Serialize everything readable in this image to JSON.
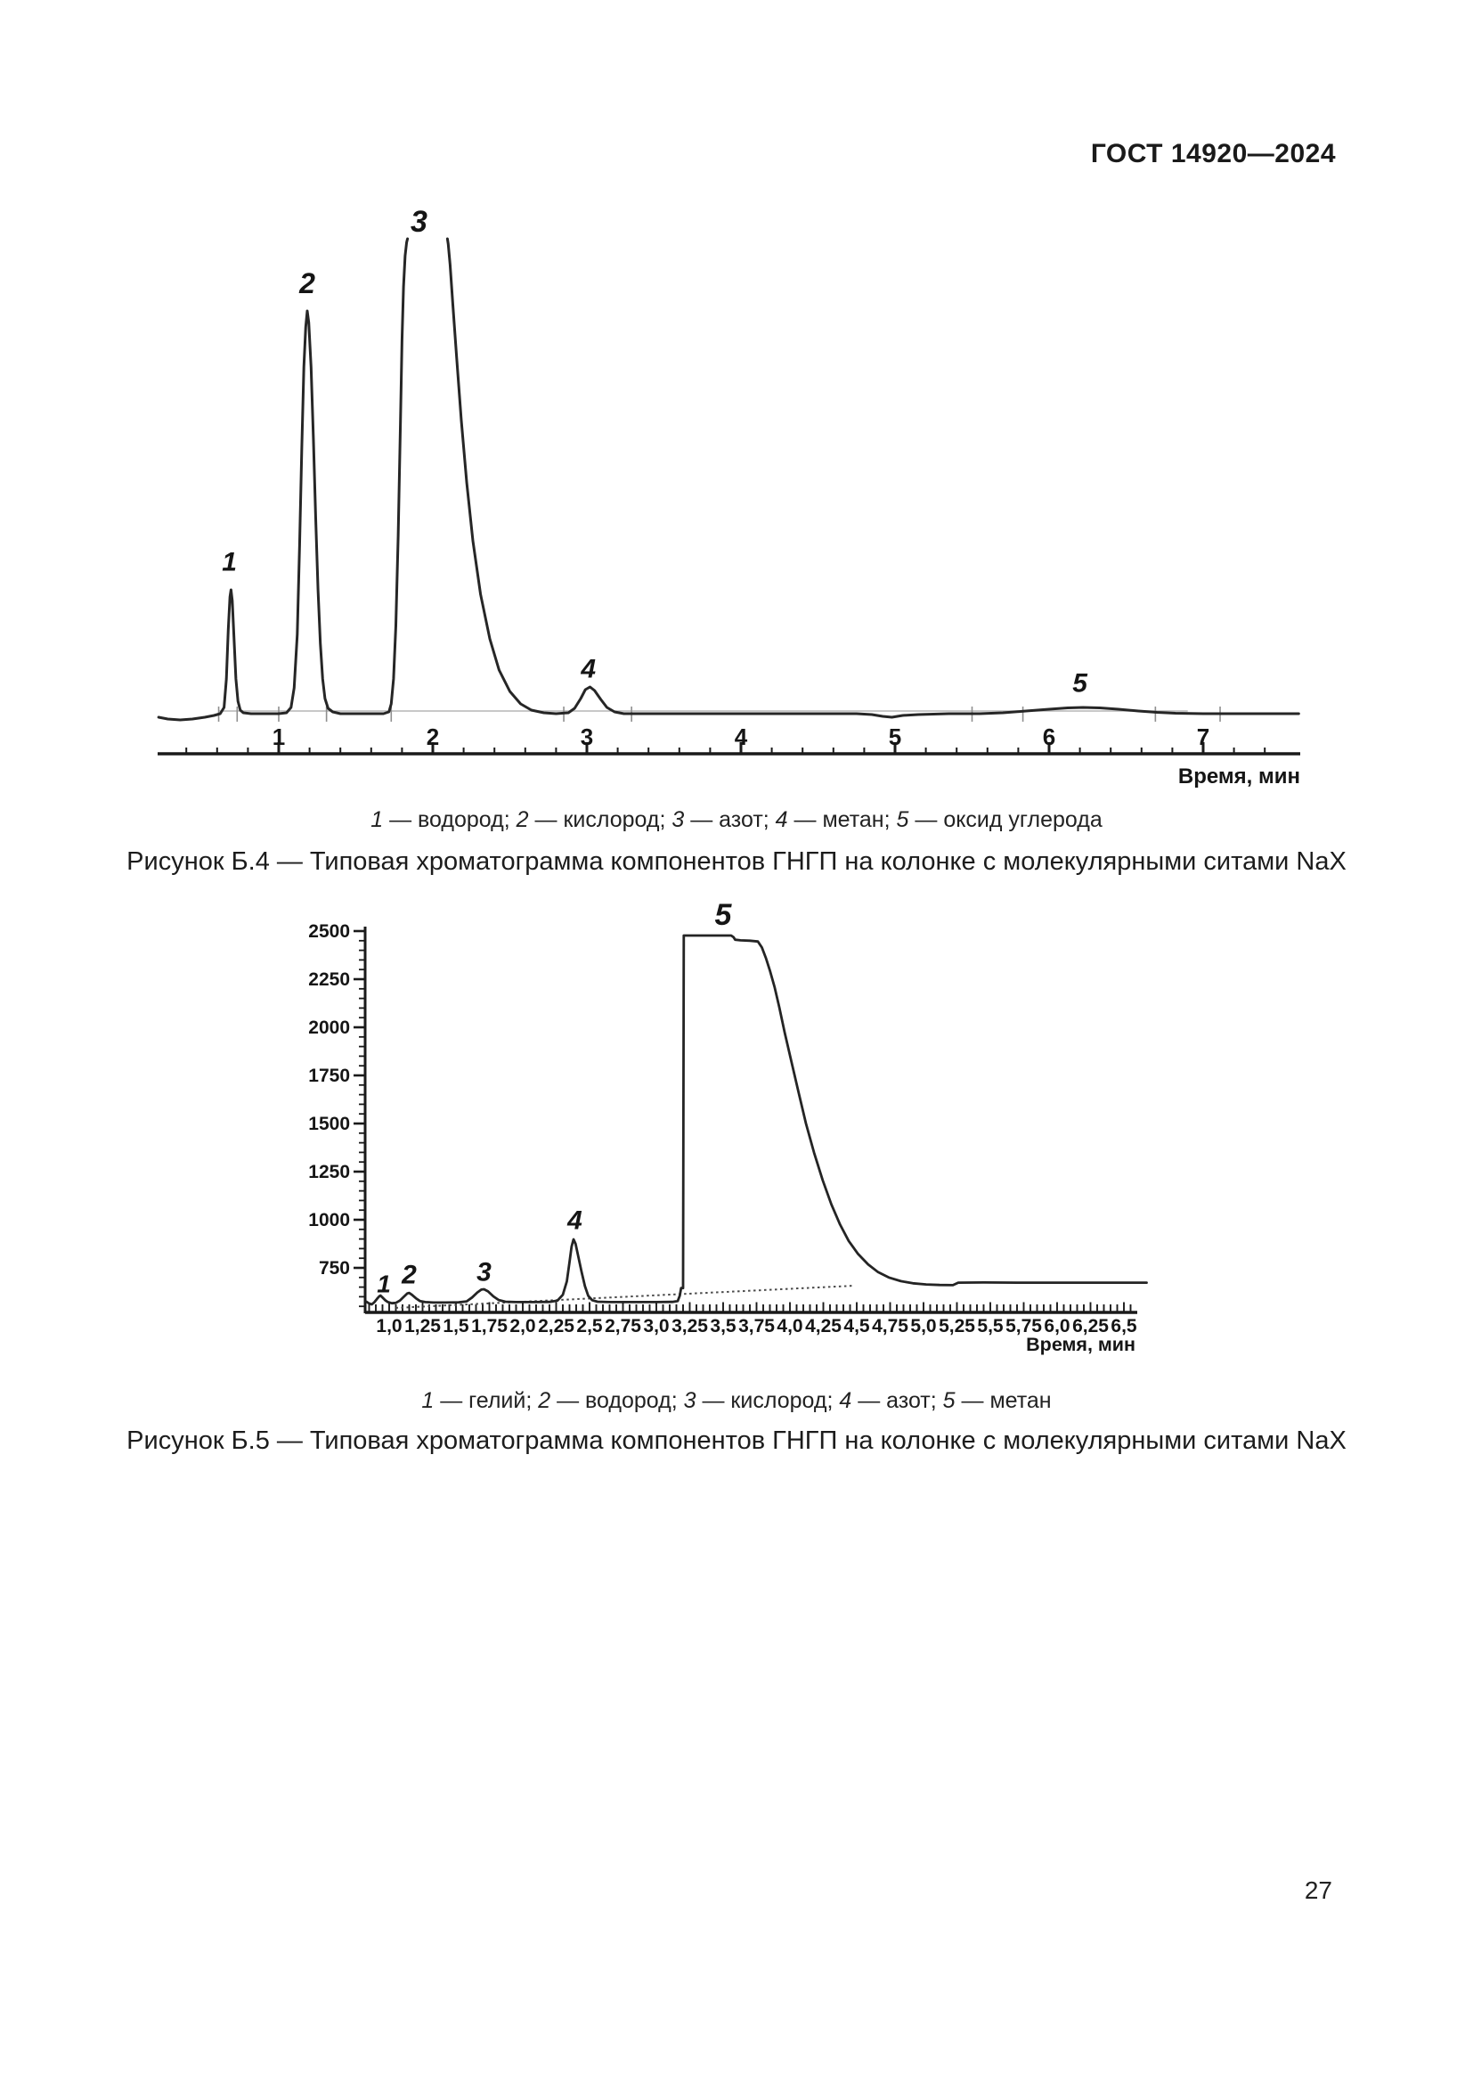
{
  "page": {
    "header_code": "ГОСТ 14920—2024",
    "page_number": "27"
  },
  "figures": [
    {
      "id": "b4",
      "legend_parts": [
        {
          "num": "1",
          "name": "водород"
        },
        {
          "num": "2",
          "name": "кислород"
        },
        {
          "num": "3",
          "name": "азот"
        },
        {
          "num": "4",
          "name": "метан"
        },
        {
          "num": "5",
          "name": "оксид углерода"
        }
      ],
      "caption": "Рисунок Б.4 — Типовая хроматограмма компонентов ГНГП на колонке с молекулярными ситами NaX",
      "xlabel": "Время, мин"
    },
    {
      "id": "b5",
      "legend_parts": [
        {
          "num": "1",
          "name": "гелий"
        },
        {
          "num": "2",
          "name": "водород"
        },
        {
          "num": "3",
          "name": "кислород"
        },
        {
          "num": "4",
          "name": "азот"
        },
        {
          "num": "5",
          "name": "метан"
        }
      ],
      "caption": "Рисунок Б.5 — Типовая хроматограмма компонентов ГНГП на колонке с молекулярными ситами NaX",
      "xlabel": "Время, мин"
    }
  ],
  "chart_data": [
    {
      "type": "line",
      "figure": "Б.4",
      "title": "Типовая хроматограмма компонентов ГНГП на колонке с молекулярными ситами NaX",
      "xlabel": "Время, мин",
      "ylabel": "",
      "x_ticks": [
        1,
        2,
        3,
        4,
        5,
        6,
        7
      ],
      "x_minor_step": 0.2,
      "x_range": [
        0.21,
        7.63
      ],
      "y_axis_note": "детекторный сигнал, относительные единицы (ось не показана)",
      "clip_level_rel": 534,
      "peaks": [
        {
          "label": "1",
          "compound": "водород",
          "retention_time_min": 0.69,
          "height_rel": 140,
          "label_t": 0.68,
          "label_h": 172
        },
        {
          "label": "2",
          "compound": "кислород",
          "retention_time_min": 1.19,
          "height_rel": 453,
          "label_t": 1.185,
          "label_h": 484
        },
        {
          "label": "3",
          "compound": "азот",
          "retention_time_min": 1.95,
          "height_rel": 534,
          "clipped": true,
          "label_t": 1.91,
          "label_h": 554
        },
        {
          "label": "4",
          "compound": "метан",
          "retention_time_min": 3.0,
          "height_rel": 31,
          "label_t": 3.01,
          "label_h": 52
        },
        {
          "label": "5",
          "compound": "оксид углерода",
          "retention_time_min": 6.2,
          "height_rel": 8,
          "label_t": 6.2,
          "label_h": 36
        }
      ],
      "integration_marks_t": [
        0.61,
        0.73,
        1.0,
        1.31,
        1.73,
        2.85,
        3.29,
        5.5,
        5.83,
        6.69,
        7.11
      ],
      "gray_baseline": {
        "t1": 0.61,
        "t2": 6.9,
        "h": 4
      },
      "trace_segments": [
        [
          [
            0.22,
            -3
          ],
          [
            0.28,
            -5
          ],
          [
            0.36,
            -6
          ],
          [
            0.44,
            -5
          ],
          [
            0.52,
            -3
          ],
          [
            0.58,
            -1
          ],
          [
            0.62,
            1
          ],
          [
            0.645,
            8
          ],
          [
            0.66,
            40
          ],
          [
            0.672,
            95
          ],
          [
            0.683,
            132
          ],
          [
            0.69,
            140
          ],
          [
            0.698,
            128
          ],
          [
            0.71,
            85
          ],
          [
            0.722,
            40
          ],
          [
            0.735,
            15
          ],
          [
            0.75,
            5
          ],
          [
            0.77,
            2
          ],
          [
            0.82,
            1
          ],
          [
            0.92,
            1
          ],
          [
            1.0,
            1
          ],
          [
            1.05,
            2
          ],
          [
            1.08,
            8
          ],
          [
            1.1,
            30
          ],
          [
            1.12,
            90
          ],
          [
            1.135,
            190
          ],
          [
            1.15,
            300
          ],
          [
            1.163,
            390
          ],
          [
            1.175,
            435
          ],
          [
            1.185,
            453
          ],
          [
            1.195,
            440
          ],
          [
            1.21,
            390
          ],
          [
            1.225,
            310
          ],
          [
            1.24,
            220
          ],
          [
            1.255,
            140
          ],
          [
            1.27,
            80
          ],
          [
            1.285,
            40
          ],
          [
            1.3,
            18
          ],
          [
            1.32,
            7
          ],
          [
            1.35,
            3
          ],
          [
            1.4,
            1
          ],
          [
            1.5,
            1
          ],
          [
            1.6,
            1
          ],
          [
            1.68,
            1
          ],
          [
            1.715,
            3
          ],
          [
            1.73,
            12
          ],
          [
            1.745,
            40
          ],
          [
            1.76,
            100
          ],
          [
            1.775,
            200
          ],
          [
            1.79,
            330
          ],
          [
            1.8,
            420
          ],
          [
            1.81,
            480
          ],
          [
            1.82,
            515
          ],
          [
            1.83,
            530
          ],
          [
            1.836,
            534
          ]
        ],
        [
          [
            2.095,
            534
          ],
          [
            2.1,
            528
          ],
          [
            2.112,
            505
          ],
          [
            2.13,
            460
          ],
          [
            2.155,
            400
          ],
          [
            2.185,
            330
          ],
          [
            2.22,
            260
          ],
          [
            2.26,
            195
          ],
          [
            2.31,
            135
          ],
          [
            2.37,
            85
          ],
          [
            2.43,
            50
          ],
          [
            2.5,
            26
          ],
          [
            2.57,
            12
          ],
          [
            2.64,
            5
          ],
          [
            2.72,
            2
          ],
          [
            2.8,
            1
          ],
          [
            2.88,
            2
          ],
          [
            2.92,
            7
          ],
          [
            2.96,
            18
          ],
          [
            2.99,
            28
          ],
          [
            3.02,
            31
          ],
          [
            3.05,
            27
          ],
          [
            3.09,
            17
          ],
          [
            3.13,
            8
          ],
          [
            3.18,
            3
          ],
          [
            3.24,
            1
          ],
          [
            3.32,
            1
          ],
          [
            3.6,
            1
          ],
          [
            4.0,
            1
          ],
          [
            4.4,
            1
          ],
          [
            4.75,
            1
          ],
          [
            4.85,
            0
          ],
          [
            4.92,
            -2
          ],
          [
            4.98,
            -3
          ],
          [
            5.05,
            -1
          ],
          [
            5.15,
            0
          ],
          [
            5.35,
            1
          ],
          [
            5.55,
            1
          ],
          [
            5.7,
            2
          ],
          [
            5.85,
            4
          ],
          [
            6.0,
            6
          ],
          [
            6.12,
            7.5
          ],
          [
            6.22,
            8
          ],
          [
            6.33,
            7.5
          ],
          [
            6.45,
            6
          ],
          [
            6.58,
            4
          ],
          [
            6.7,
            2.5
          ],
          [
            6.82,
            1.5
          ],
          [
            7.0,
            1
          ],
          [
            7.3,
            1
          ],
          [
            7.62,
            1
          ]
        ]
      ]
    },
    {
      "type": "line",
      "figure": "Б.5",
      "title": "Типовая хроматограмма компонентов ГНГП на колонке с молекулярными ситами NaX",
      "xlabel": "Время, мин",
      "ylabel": "",
      "y_ticks": [
        750,
        1000,
        1250,
        1500,
        1750,
        2000,
        2250,
        2500
      ],
      "y_minor_step": 50,
      "y_range": [
        520,
        2550
      ],
      "x_tick_values": [
        1.0,
        1.25,
        1.5,
        1.75,
        2.0,
        2.25,
        2.5,
        2.75,
        3.0,
        3.25,
        3.5,
        3.75,
        4.0,
        4.25,
        4.5,
        4.75,
        5.0,
        5.25,
        5.5,
        5.75,
        6.0,
        6.25,
        6.5
      ],
      "x_tick_labels": [
        "1,0",
        "1,25",
        "1,5",
        "1,75",
        "2,0",
        "2,25",
        "2,5",
        "2,75",
        "3,0",
        "3,25",
        "3,5",
        "3,75",
        "4,0",
        "4,25",
        "4,5",
        "4,75",
        "5,0",
        "5,25",
        "5,5",
        "5,75",
        "6,0",
        "6,25",
        "6,5"
      ],
      "x_minor_step": 0.05,
      "x_range": [
        0.83,
        6.67
      ],
      "baseline_value": 570,
      "peaks": [
        {
          "label": "1",
          "compound": "гелий",
          "retention_time_min": 0.94,
          "apex_value": 606,
          "label_t": 0.96,
          "label_v": 667
        },
        {
          "label": "2",
          "compound": "водород",
          "retention_time_min": 1.15,
          "apex_value": 620,
          "label_t": 1.15,
          "label_v": 718
        },
        {
          "label": "3",
          "compound": "кислород",
          "retention_time_min": 1.7,
          "apex_value": 639,
          "label_t": 1.71,
          "label_v": 732
        },
        {
          "label": "4",
          "compound": "азот",
          "retention_time_min": 2.38,
          "apex_value": 898,
          "label_t": 2.39,
          "label_v": 1000
        },
        {
          "label": "5",
          "compound": "метан",
          "retention_time_min": 3.5,
          "apex_value": 2477,
          "flat_top": [
            3.2,
            3.76
          ],
          "label_t": 3.5,
          "label_v": 2588
        }
      ],
      "dotted_baseline": [
        [
          1.05,
          542
        ],
        [
          4.47,
          657
        ]
      ],
      "trace": [
        [
          0.83,
          574
        ],
        [
          0.85,
          565
        ],
        [
          0.87,
          560
        ],
        [
          0.89,
          572
        ],
        [
          0.91,
          590
        ],
        [
          0.925,
          602
        ],
        [
          0.935,
          606
        ],
        [
          0.95,
          596
        ],
        [
          0.97,
          582
        ],
        [
          0.99,
          572
        ],
        [
          1.02,
          566
        ],
        [
          1.05,
          568
        ],
        [
          1.08,
          580
        ],
        [
          1.11,
          600
        ],
        [
          1.135,
          617
        ],
        [
          1.15,
          620
        ],
        [
          1.17,
          610
        ],
        [
          1.2,
          592
        ],
        [
          1.23,
          578
        ],
        [
          1.27,
          572
        ],
        [
          1.33,
          570
        ],
        [
          1.42,
          570
        ],
        [
          1.52,
          571
        ],
        [
          1.58,
          576
        ],
        [
          1.62,
          596
        ],
        [
          1.66,
          622
        ],
        [
          1.69,
          637
        ],
        [
          1.71,
          639
        ],
        [
          1.74,
          628
        ],
        [
          1.78,
          602
        ],
        [
          1.82,
          583
        ],
        [
          1.87,
          574
        ],
        [
          1.95,
          572
        ],
        [
          2.08,
          572
        ],
        [
          2.2,
          573
        ],
        [
          2.26,
          580
        ],
        [
          2.3,
          610
        ],
        [
          2.33,
          680
        ],
        [
          2.35,
          780
        ],
        [
          2.365,
          860
        ],
        [
          2.38,
          898
        ],
        [
          2.395,
          875
        ],
        [
          2.415,
          810
        ],
        [
          2.44,
          730
        ],
        [
          2.465,
          655
        ],
        [
          2.49,
          605
        ],
        [
          2.52,
          582
        ],
        [
          2.56,
          574
        ],
        [
          2.65,
          572
        ],
        [
          2.8,
          572
        ],
        [
          3.0,
          572
        ],
        [
          3.12,
          573
        ],
        [
          3.16,
          578
        ],
        [
          3.175,
          605
        ],
        [
          3.185,
          645
        ],
        [
          3.2,
          645
        ],
        [
          3.205,
          2477
        ],
        [
          3.3,
          2477
        ],
        [
          3.42,
          2477
        ],
        [
          3.52,
          2477
        ],
        [
          3.56,
          2477
        ],
        [
          3.578,
          2468
        ],
        [
          3.59,
          2455
        ],
        [
          3.63,
          2452
        ],
        [
          3.7,
          2450
        ],
        [
          3.76,
          2446
        ],
        [
          3.79,
          2415
        ],
        [
          3.82,
          2360
        ],
        [
          3.85,
          2295
        ],
        [
          3.885,
          2210
        ],
        [
          3.92,
          2105
        ],
        [
          3.96,
          1975
        ],
        [
          4.01,
          1825
        ],
        [
          4.065,
          1660
        ],
        [
          4.12,
          1500
        ],
        [
          4.18,
          1350
        ],
        [
          4.245,
          1205
        ],
        [
          4.31,
          1080
        ],
        [
          4.375,
          975
        ],
        [
          4.44,
          890
        ],
        [
          4.51,
          822
        ],
        [
          4.585,
          768
        ],
        [
          4.66,
          728
        ],
        [
          4.74,
          700
        ],
        [
          4.83,
          681
        ],
        [
          4.92,
          670
        ],
        [
          5.02,
          664
        ],
        [
          5.12,
          661
        ],
        [
          5.22,
          660
        ],
        [
          5.26,
          673
        ],
        [
          5.45,
          674
        ],
        [
          5.7,
          673
        ],
        [
          6.0,
          673
        ],
        [
          6.3,
          673
        ],
        [
          6.67,
          673
        ]
      ]
    }
  ]
}
